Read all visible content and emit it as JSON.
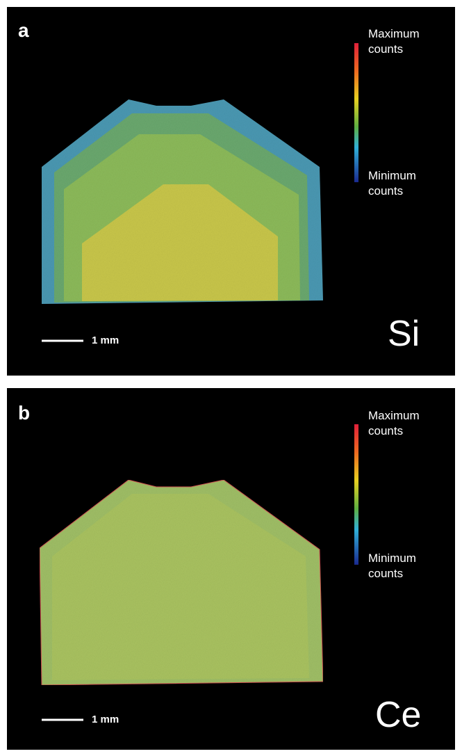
{
  "panels": [
    {
      "label": "a",
      "element": "Si",
      "scale_bar": "1 mm",
      "legend_max": "Maximum counts",
      "legend_min": "Minimum counts"
    },
    {
      "label": "b",
      "element": "Ce",
      "scale_bar": "1 mm",
      "legend_max": "Maximum counts",
      "legend_min": "Minimum counts"
    }
  ]
}
